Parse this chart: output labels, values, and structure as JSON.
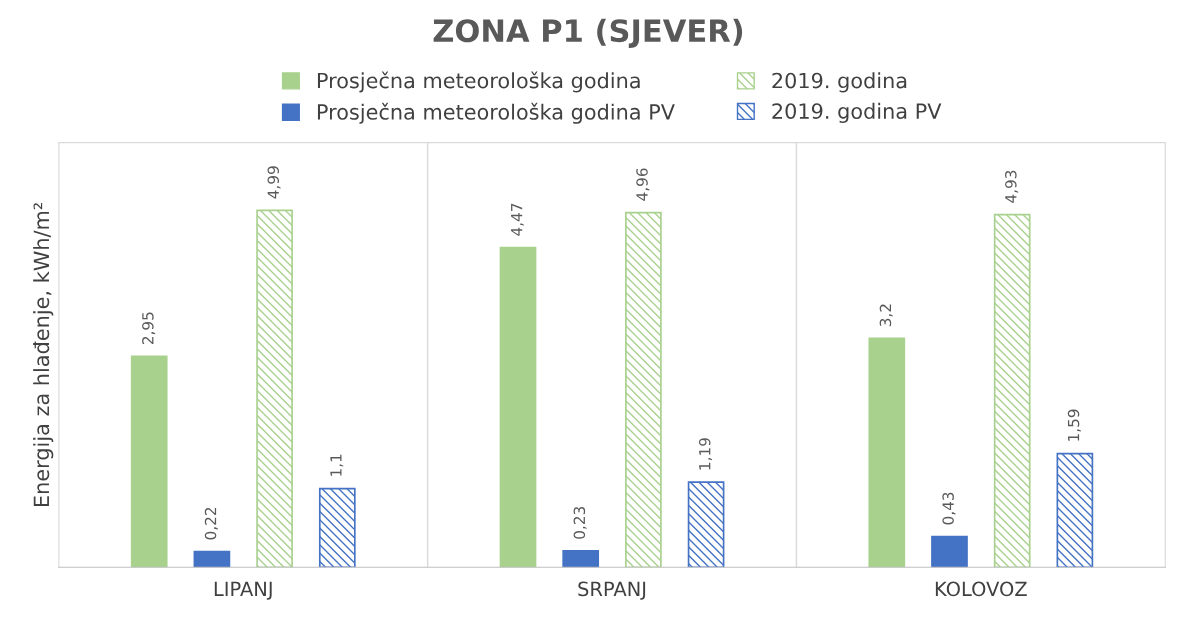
{
  "chart_data": {
    "type": "bar",
    "title": "ZONA P1 (SJEVER)",
    "ylabel": "Energija za hlađenje, kWh/m²",
    "categories": [
      "LIPANJ",
      "SRPANJ",
      "KOLOVOZ"
    ],
    "series": [
      {
        "name": "Prosječna meteorološka godina",
        "color": "#a9d18e",
        "values": [
          2.95,
          4.47,
          3.2
        ],
        "value_labels": [
          "2,95",
          "4,47",
          "3,2"
        ]
      },
      {
        "name": "Prosječna meteorološka godina PV",
        "color": "#4472c4",
        "values": [
          0.22,
          0.23,
          0.43
        ],
        "value_labels": [
          "0,22",
          "0,23",
          "0,43"
        ]
      },
      {
        "name": "2019. godina",
        "color": "#a9d18e",
        "values": [
          4.99,
          4.96,
          4.93
        ],
        "value_labels": [
          "4,99",
          "4,96",
          "4,93"
        ]
      },
      {
        "name": "2019. godina PV",
        "color": "#4472c4",
        "values": [
          1.1,
          1.19,
          1.59
        ],
        "value_labels": [
          "1,1",
          "1,19",
          "1,59"
        ]
      }
    ],
    "grid": "x",
    "legend": "top"
  }
}
